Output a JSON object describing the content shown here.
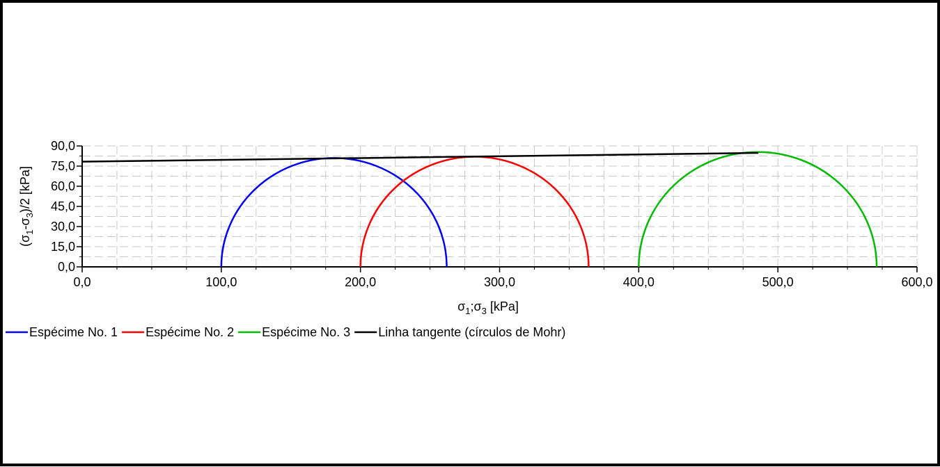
{
  "chart_data": {
    "type": "line",
    "title": "",
    "xlabel": {
      "base": "σ",
      "sub1": "1",
      "sep": ";σ",
      "sub2": "3",
      "unit": " [kPa]"
    },
    "ylabel": {
      "open": "(σ",
      "sub1": "1",
      "mid": "-σ",
      "sub2": "3",
      "unit": ")/2 [kPa]"
    },
    "xlim": [
      0,
      600
    ],
    "ylim": [
      0,
      90
    ],
    "xticks": [
      {
        "value": 0,
        "label": "0,0"
      },
      {
        "value": 100,
        "label": "100,0"
      },
      {
        "value": 200,
        "label": "200,0"
      },
      {
        "value": 300,
        "label": "300,0"
      },
      {
        "value": 400,
        "label": "400,0"
      },
      {
        "value": 500,
        "label": "500,0"
      },
      {
        "value": 600,
        "label": "600,0"
      }
    ],
    "yticks": [
      {
        "value": 0,
        "label": "0,0"
      },
      {
        "value": 15,
        "label": "15,0"
      },
      {
        "value": 30,
        "label": "30,0"
      },
      {
        "value": 45,
        "label": "45,0"
      },
      {
        "value": 60,
        "label": "60,0"
      },
      {
        "value": 75,
        "label": "75,0"
      },
      {
        "value": 90,
        "label": "90,0"
      }
    ],
    "grid": true,
    "legend_position": "bottom-left",
    "circles": [
      {
        "name": "Espécime No. 1",
        "color": "#0000ff",
        "sigma3": 100,
        "sigma1": 262
      },
      {
        "name": "Espécime No. 2",
        "color": "#ff0000",
        "sigma3": 200,
        "sigma1": 364
      },
      {
        "name": "Espécime No. 3",
        "color": "#00bb00",
        "sigma3": 400,
        "sigma1": 571
      }
    ],
    "tangent_line": {
      "name": "Linha tangente (círculos de Mohr)",
      "color": "#000000",
      "x": [
        0,
        486
      ],
      "y": [
        78.3,
        84.8
      ]
    }
  }
}
